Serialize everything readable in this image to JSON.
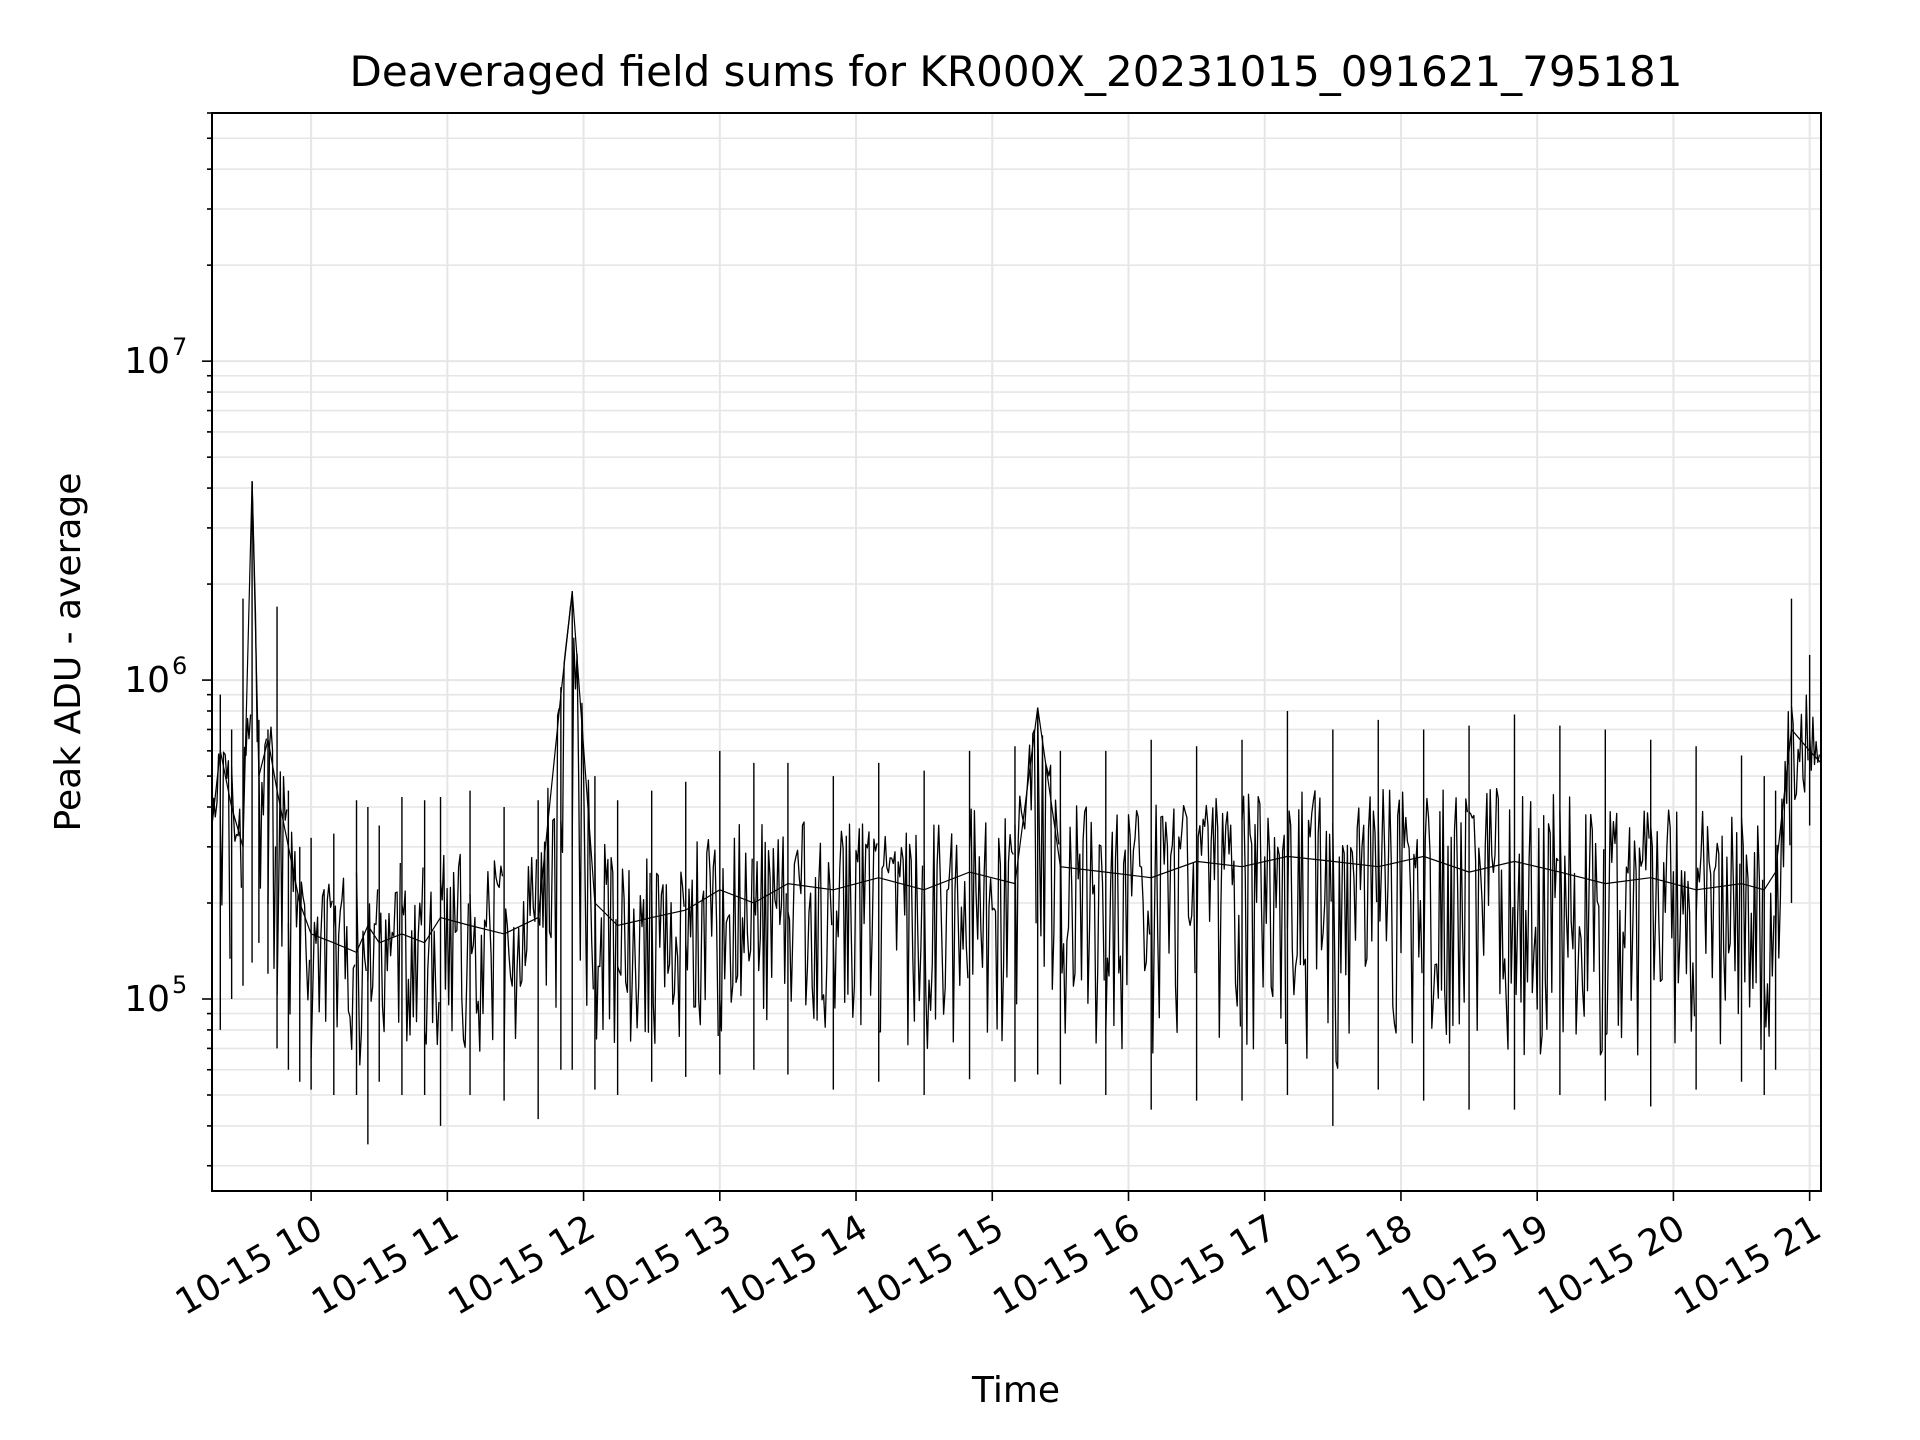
{
  "chart_data": {
    "type": "line",
    "title": "Deaveraged field sums for KR000X_20231015_091621_795181",
    "xlabel": "Time",
    "ylabel": "Peak ADU - average",
    "y_scale": "log",
    "ylim": [
      25000,
      60000000
    ],
    "xlim": [
      "2023-10-15T09:16:21",
      "2023-10-15T21:05:00"
    ],
    "grid": "major and minor",
    "line_color": "#000000",
    "x_ticks": [
      {
        "value": "2023-10-15T10:00:00",
        "label": "10-15 10"
      },
      {
        "value": "2023-10-15T11:00:00",
        "label": "10-15 11"
      },
      {
        "value": "2023-10-15T12:00:00",
        "label": "10-15 12"
      },
      {
        "value": "2023-10-15T13:00:00",
        "label": "10-15 13"
      },
      {
        "value": "2023-10-15T14:00:00",
        "label": "10-15 14"
      },
      {
        "value": "2023-10-15T15:00:00",
        "label": "10-15 15"
      },
      {
        "value": "2023-10-15T16:00:00",
        "label": "10-15 16"
      },
      {
        "value": "2023-10-15T17:00:00",
        "label": "10-15 17"
      },
      {
        "value": "2023-10-15T18:00:00",
        "label": "10-15 18"
      },
      {
        "value": "2023-10-15T19:00:00",
        "label": "10-15 19"
      },
      {
        "value": "2023-10-15T20:00:00",
        "label": "10-15 20"
      },
      {
        "value": "2023-10-15T21:00:00",
        "label": "10-15 21"
      }
    ],
    "y_ticks": [
      {
        "value": 100000,
        "base": "10",
        "exp": "5"
      },
      {
        "value": 1000000,
        "base": "10",
        "exp": "6"
      },
      {
        "value": 10000000,
        "base": "10",
        "exp": "7"
      }
    ],
    "series": [
      {
        "x": [
          "2023-10-15T09:16:21",
          "2023-10-15T09:20:00",
          "2023-10-15T09:25:00",
          "2023-10-15T09:30:00",
          "2023-10-15T09:34:00",
          "2023-10-15T09:37:00",
          "2023-10-15T09:41:00",
          "2023-10-15T09:45:00",
          "2023-10-15T09:50:00",
          "2023-10-15T09:55:00",
          "2023-10-15T10:00:00",
          "2023-10-15T10:10:00",
          "2023-10-15T10:20:00",
          "2023-10-15T10:25:00",
          "2023-10-15T10:30:00",
          "2023-10-15T10:40:00",
          "2023-10-15T10:50:00",
          "2023-10-15T10:57:00",
          "2023-10-15T11:10:00",
          "2023-10-15T11:25:00",
          "2023-10-15T11:40:00",
          "2023-10-15T11:50:00",
          "2023-10-15T11:55:00",
          "2023-10-15T12:05:00",
          "2023-10-15T12:15:00",
          "2023-10-15T12:30:00",
          "2023-10-15T12:45:00",
          "2023-10-15T13:00:00",
          "2023-10-15T13:15:00",
          "2023-10-15T13:30:00",
          "2023-10-15T13:50:00",
          "2023-10-15T14:10:00",
          "2023-10-15T14:30:00",
          "2023-10-15T14:50:00",
          "2023-10-15T15:10:00",
          "2023-10-15T15:20:00",
          "2023-10-15T15:30:00",
          "2023-10-15T15:50:00",
          "2023-10-15T16:10:00",
          "2023-10-15T16:30:00",
          "2023-10-15T16:50:00",
          "2023-10-15T17:10:00",
          "2023-10-15T17:30:00",
          "2023-10-15T17:50:00",
          "2023-10-15T18:10:00",
          "2023-10-15T18:30:00",
          "2023-10-15T18:50:00",
          "2023-10-15T19:10:00",
          "2023-10-15T19:30:00",
          "2023-10-15T19:50:00",
          "2023-10-15T20:10:00",
          "2023-10-15T20:30:00",
          "2023-10-15T20:40:00",
          "2023-10-15T20:45:00",
          "2023-10-15T20:52:00",
          "2023-10-15T21:00:00",
          "2023-10-15T21:05:00"
        ],
        "y": [
          350000,
          600000,
          400000,
          300000,
          4200000,
          500000,
          650000,
          450000,
          300000,
          200000,
          160000,
          150000,
          140000,
          170000,
          150000,
          160000,
          150000,
          180000,
          170000,
          160000,
          180000,
          900000,
          1900000,
          200000,
          170000,
          180000,
          190000,
          220000,
          200000,
          230000,
          220000,
          240000,
          220000,
          250000,
          230000,
          820000,
          260000,
          250000,
          240000,
          270000,
          260000,
          280000,
          270000,
          260000,
          280000,
          250000,
          270000,
          250000,
          230000,
          240000,
          220000,
          230000,
          220000,
          250000,
          700000,
          600000,
          550000
        ],
        "y_min": [
          60000,
          80000,
          100000,
          110000,
          130000,
          150000,
          120000,
          70000,
          60000,
          55000,
          52000,
          50000,
          50000,
          35000,
          55000,
          50000,
          50000,
          40000,
          50000,
          48000,
          42000,
          60000,
          60000,
          52000,
          50000,
          55000,
          57000,
          58000,
          60000,
          58000,
          52000,
          55000,
          50000,
          56000,
          55000,
          58000,
          54000,
          50000,
          45000,
          48000,
          48000,
          50000,
          40000,
          52000,
          48000,
          45000,
          45000,
          50000,
          48000,
          46000,
          52000,
          55000,
          50000,
          60000,
          200000,
          350000,
          450000
        ],
        "y_max": [
          800000,
          900000,
          700000,
          1800000,
          4200000,
          750000,
          700000,
          1700000,
          450000,
          300000,
          320000,
          330000,
          420000,
          400000,
          350000,
          430000,
          420000,
          430000,
          450000,
          400000,
          420000,
          950000,
          1900000,
          500000,
          420000,
          450000,
          480000,
          600000,
          550000,
          550000,
          500000,
          550000,
          520000,
          600000,
          620000,
          820000,
          600000,
          600000,
          650000,
          620000,
          650000,
          800000,
          700000,
          750000,
          700000,
          720000,
          780000,
          720000,
          700000,
          650000,
          620000,
          580000,
          500000,
          450000,
          1800000,
          1200000,
          900000
        ]
      }
    ]
  }
}
